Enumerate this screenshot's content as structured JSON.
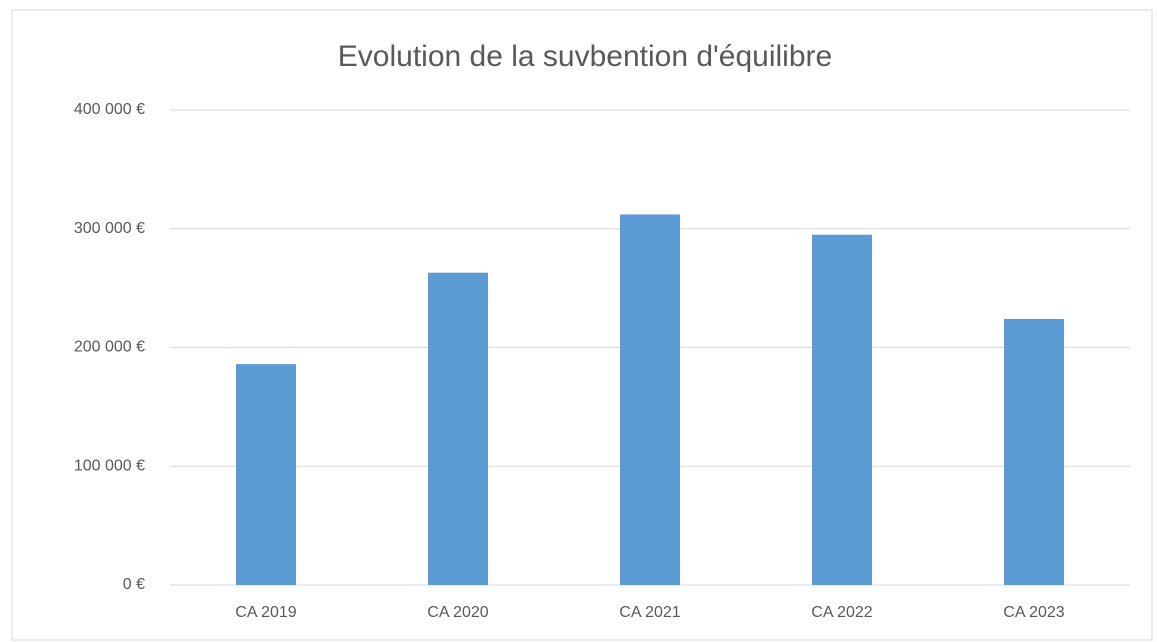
{
  "chart_data": {
    "type": "bar",
    "title": "Evolution de la suvbention d'équilibre",
    "categories": [
      "CA 2019",
      "CA 2020",
      "CA 2021",
      "CA 2022",
      "CA 2023"
    ],
    "values": [
      186000,
      263000,
      312000,
      295000,
      224000
    ],
    "color": "#5b9bd5",
    "ylim": [
      0,
      400000
    ],
    "yticks": [
      {
        "value": 0,
        "label": "0 €"
      },
      {
        "value": 100000,
        "label": "100 000 €"
      },
      {
        "value": 200000,
        "label": "200 000 €"
      },
      {
        "value": 300000,
        "label": "300 000 €"
      },
      {
        "value": 400000,
        "label": "400 000 €"
      }
    ],
    "grid": true
  }
}
